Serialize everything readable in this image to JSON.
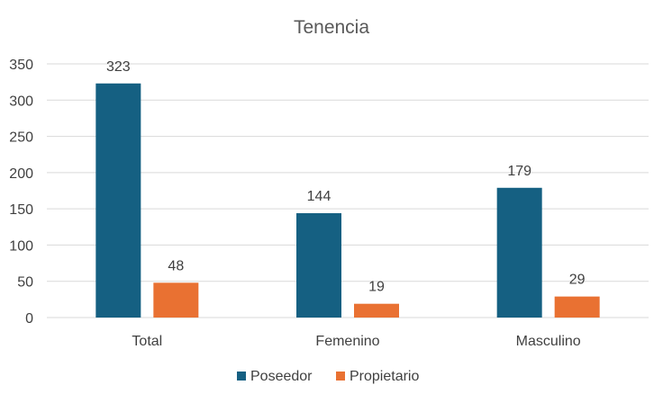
{
  "chart_data": {
    "type": "bar",
    "title": "Tenencia",
    "categories": [
      "Total",
      "Femenino",
      "Masculino"
    ],
    "series": [
      {
        "name": "Poseedor",
        "values": [
          323,
          144,
          179
        ],
        "color": "#156082"
      },
      {
        "name": "Propietario",
        "values": [
          48,
          19,
          29
        ],
        "color": "#e97132"
      }
    ],
    "ylim": [
      0,
      350
    ],
    "yticks": [
      0,
      50,
      100,
      150,
      200,
      250,
      300,
      350
    ],
    "grid": true,
    "legend": "bottom",
    "data_labels": true
  }
}
